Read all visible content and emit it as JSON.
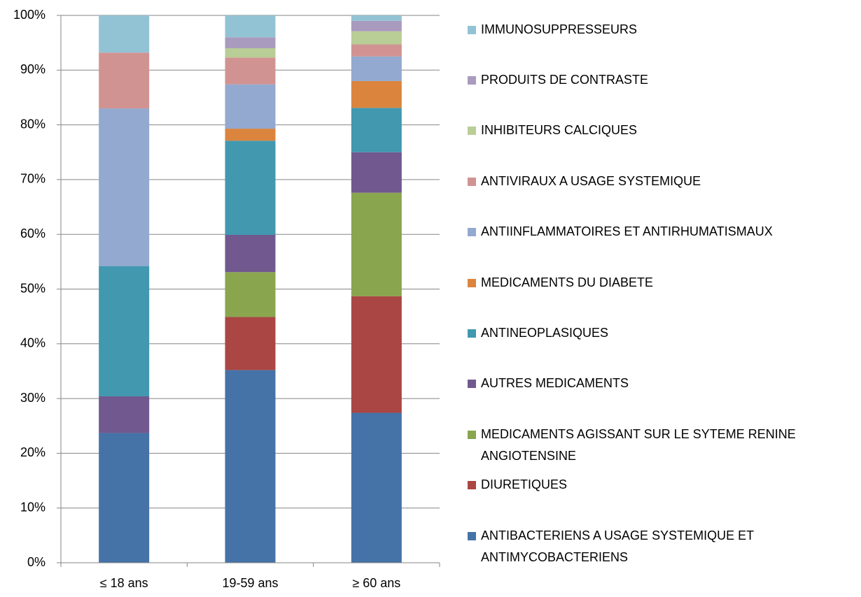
{
  "chart_data": {
    "type": "stacked_bar",
    "categories": [
      "≤ 18 ans",
      "19-59 ans",
      "≥ 60 ans"
    ],
    "ylim": [
      0,
      100
    ],
    "yticks": [
      {
        "value": 0,
        "label": "0%"
      },
      {
        "value": 10,
        "label": "10%"
      },
      {
        "value": 20,
        "label": "20%"
      },
      {
        "value": 30,
        "label": "30%"
      },
      {
        "value": 40,
        "label": "40%"
      },
      {
        "value": 50,
        "label": "50%"
      },
      {
        "value": 60,
        "label": "60%"
      },
      {
        "value": 70,
        "label": "70%"
      },
      {
        "value": 80,
        "label": "80%"
      },
      {
        "value": 90,
        "label": "90%"
      },
      {
        "value": 100,
        "label": "100%"
      }
    ],
    "grid": true,
    "legend": "right",
    "series": [
      {
        "name": "ANTIBACTERIENS A USAGE SYSTEMIQUE ET ANTIMYCOBACTERIENS",
        "color": "#4572a7",
        "values": [
          23.7,
          35.2,
          27.4
        ]
      },
      {
        "name": "DIURETIQUES",
        "color": "#aa4643",
        "values": [
          0,
          9.7,
          21.3
        ]
      },
      {
        "name": "MEDICAMENTS AGISSANT SUR LE SYTEME RENINE ANGIOTENSINE",
        "color": "#89a54e",
        "values": [
          0,
          8.2,
          18.9
        ]
      },
      {
        "name": "AUTRES MEDICAMENTS",
        "color": "#71588f",
        "values": [
          6.7,
          6.8,
          7.4
        ]
      },
      {
        "name": "ANTINEOPLASIQUES",
        "color": "#4198af",
        "values": [
          23.8,
          17.2,
          8.1
        ]
      },
      {
        "name": "MEDICAMENTS DU DIABETE",
        "color": "#db843d",
        "values": [
          0,
          2.2,
          4.9
        ]
      },
      {
        "name": "ANTIINFLAMMATOIRES ET ANTIRHUMATISMAUX",
        "color": "#93a9cf",
        "values": [
          28.8,
          8.1,
          4.5
        ]
      },
      {
        "name": "ANTIVIRAUX A USAGE SYSTEMIQUE",
        "color": "#d19392",
        "values": [
          10.2,
          4.9,
          2.2
        ]
      },
      {
        "name": "INHIBITEURS CALCIQUES",
        "color": "#b9cd96",
        "values": [
          0,
          1.7,
          2.4
        ]
      },
      {
        "name": "PRODUITS DE CONTRASTE",
        "color": "#a99bbd",
        "values": [
          0,
          2.0,
          1.9
        ]
      },
      {
        "name": "IMMUNOSUPPRESSEURS",
        "color": "#92c3d4",
        "values": [
          6.8,
          4.0,
          1.0
        ]
      }
    ]
  }
}
